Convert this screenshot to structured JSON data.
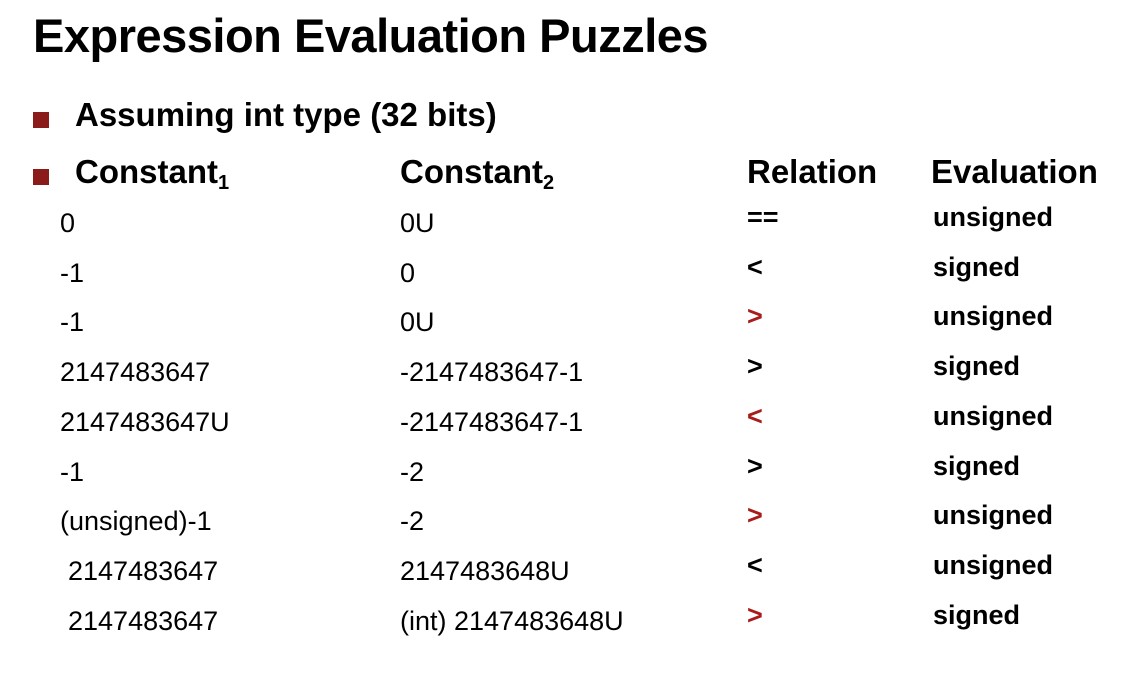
{
  "title": "Expression Evaluation Puzzles",
  "assumption": "Assuming int type (32 bits)",
  "headers": {
    "constant1": "Constant",
    "constant1_sub": "1",
    "constant2": "Constant",
    "constant2_sub": "2",
    "relation": "Relation",
    "evaluation": "Evaluation"
  },
  "colors": {
    "bullet": "#8b1a1a",
    "relation_highlight": "#a81c1c",
    "text": "#000000"
  },
  "rows": [
    {
      "c1": "0",
      "c2": "0U",
      "relation": "==",
      "evaluation": "unsigned",
      "highlight": false
    },
    {
      "c1": "-1",
      "c2": "0",
      "relation": "<",
      "evaluation": "signed",
      "highlight": false
    },
    {
      "c1": "-1",
      "c2": "0U",
      "relation": ">",
      "evaluation": "unsigned",
      "highlight": true
    },
    {
      "c1": "2147483647",
      "c2": "-2147483647-1",
      "relation": ">",
      "evaluation": "signed",
      "highlight": false
    },
    {
      "c1": "2147483647U",
      "c2": "-2147483647-1",
      "relation": "<",
      "evaluation": "unsigned",
      "highlight": true
    },
    {
      "c1": "-1",
      "c2": "-2",
      "relation": ">",
      "evaluation": "signed",
      "highlight": false
    },
    {
      "c1": "(unsigned)-1",
      "c2": "-2",
      "relation": ">",
      "evaluation": "unsigned",
      "highlight": true
    },
    {
      "c1": "2147483647",
      "c2": "2147483648U",
      "relation": "<",
      "evaluation": "unsigned",
      "highlight": false
    },
    {
      "c1": "2147483647",
      "c2": "(int) 2147483648U",
      "relation": ">",
      "evaluation": "signed",
      "highlight": true
    }
  ]
}
